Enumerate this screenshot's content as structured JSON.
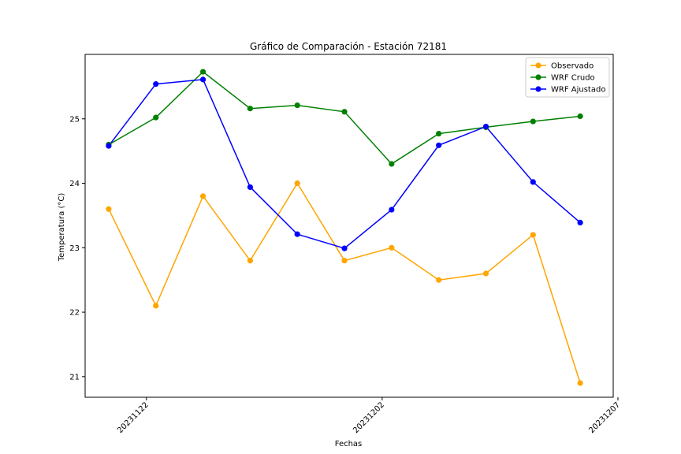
{
  "chart_data": {
    "type": "line",
    "title": "Gráfico de Comparación - Estación 72181",
    "xlabel": "Fechas",
    "ylabel": "Temperatura (°C)",
    "x": [
      20231121,
      20231122,
      20231123,
      20231124,
      20231125,
      20231126,
      20231127,
      20231128,
      20231129,
      20231130,
      20231131
    ],
    "x_ticks": [
      {
        "value": 20231121.8,
        "label": "20231122"
      },
      {
        "value": 20231126.8,
        "label": "20231202"
      },
      {
        "value": 20231131.8,
        "label": "20231207"
      }
    ],
    "xlim": [
      20231120.5,
      20231131.7
    ],
    "y_ticks": [
      21,
      22,
      23,
      24,
      25
    ],
    "ylim": [
      20.68,
      26.0
    ],
    "grid": false,
    "legend_position": "top-right",
    "series": [
      {
        "name": "Observado",
        "color": "#FFA500",
        "values": [
          23.6,
          22.1,
          23.8,
          22.8,
          24.0,
          22.8,
          23.0,
          22.5,
          22.6,
          23.2,
          20.9
        ]
      },
      {
        "name": "WRF Crudo",
        "color": "#008000",
        "values": [
          24.6,
          25.02,
          25.73,
          25.16,
          25.21,
          25.11,
          24.3,
          24.77,
          24.87,
          24.96,
          25.04
        ]
      },
      {
        "name": "WRF Ajustado",
        "color": "#0000FF",
        "values": [
          24.58,
          25.54,
          25.61,
          23.94,
          23.21,
          22.99,
          23.59,
          24.59,
          24.88,
          24.02,
          23.39
        ]
      }
    ]
  }
}
